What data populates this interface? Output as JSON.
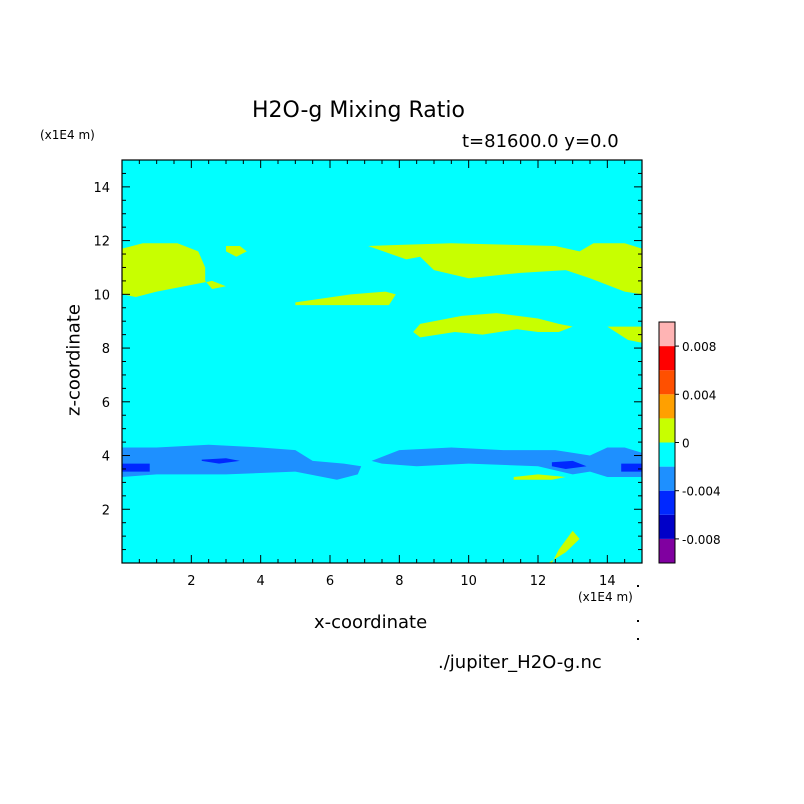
{
  "chart_data": {
    "type": "heatmap",
    "title": "H2O-g Mixing Ratio",
    "subtitle": "t=81600.0 y=0.0",
    "xlabel": "x-coordinate",
    "ylabel": "z-coordinate",
    "x_unit": "(x1E4 m)",
    "y_unit": "(x1E4 m)",
    "xlim": [
      0,
      15
    ],
    "ylim": [
      0,
      15
    ],
    "xticks": [
      "2",
      "4",
      "6",
      "8",
      "10",
      "12",
      "14"
    ],
    "yticks": [
      "2",
      "4",
      "6",
      "8",
      "10",
      "12",
      "14"
    ],
    "colorbar": {
      "levels": [
        -0.01,
        -0.008,
        -0.006,
        -0.004,
        -0.002,
        0,
        0.002,
        0.004,
        0.006,
        0.008,
        0.01
      ],
      "colors": [
        "#8000a0",
        "#0000c8",
        "#0028ff",
        "#1e90ff",
        "#00ffff",
        "#c8ff00",
        "#ffa000",
        "#ff5000",
        "#ff0000",
        "#ffb4b4"
      ],
      "tick_labels": [
        "-0.008",
        "-0.004",
        "0",
        "0.004",
        "0.008"
      ],
      "tick_values": [
        -0.008,
        -0.004,
        0,
        0.004,
        0.008
      ]
    },
    "background_value": -0.001,
    "regions": [
      {
        "name": "upper-moist-left",
        "level": 0.001,
        "x": [
          0,
          0.6,
          1.6,
          2.2,
          2.4,
          2.4,
          2.6,
          3.0,
          2.6,
          1.0,
          0.4,
          0
        ],
        "z": [
          11.7,
          11.9,
          11.9,
          11.6,
          11.0,
          10.5,
          10.2,
          10.3,
          10.5,
          10.1,
          9.9,
          10.0
        ]
      },
      {
        "name": "upper-moist-small",
        "level": 0.001,
        "x": [
          3.0,
          3.4,
          3.6,
          3.3,
          3.0
        ],
        "z": [
          11.8,
          11.8,
          11.6,
          11.4,
          11.6
        ]
      },
      {
        "name": "upper-moist-band",
        "level": 0.001,
        "x": [
          5.0,
          6.6,
          7.6,
          7.9,
          7.7,
          6.8,
          5.8,
          5.0
        ],
        "z": [
          9.7,
          10.0,
          10.1,
          10.0,
          9.6,
          9.6,
          9.6,
          9.6
        ]
      },
      {
        "name": "upper-moist-right",
        "level": 0.001,
        "x": [
          7.1,
          9.5,
          12.5,
          13.2,
          13.6,
          14.5,
          15.0,
          15.0,
          14.5,
          13.5,
          12.8,
          11.5,
          10.0,
          9.0,
          8.6,
          8.2,
          7.1
        ],
        "z": [
          11.8,
          11.9,
          11.8,
          11.6,
          11.9,
          11.9,
          11.7,
          10.0,
          10.1,
          10.6,
          10.9,
          10.8,
          10.6,
          10.9,
          11.4,
          11.3,
          11.8
        ]
      },
      {
        "name": "mid-moist",
        "level": 0.001,
        "x": [
          8.6,
          9.8,
          10.8,
          12.0,
          12.6,
          13.0,
          12.6,
          12.0,
          11.4,
          10.4,
          9.6,
          8.6,
          8.4
        ],
        "z": [
          8.9,
          9.2,
          9.3,
          9.1,
          8.9,
          8.8,
          8.6,
          8.6,
          8.7,
          8.5,
          8.6,
          8.4,
          8.6
        ]
      },
      {
        "name": "mid-moist-right",
        "level": 0.001,
        "x": [
          14.0,
          15.0,
          15.0,
          14.6
        ],
        "z": [
          8.8,
          8.8,
          8.2,
          8.3
        ]
      },
      {
        "name": "lower-dry-left",
        "level": -0.003,
        "x": [
          0,
          1.0,
          2.5,
          4.0,
          5.0,
          5.5,
          6.4,
          6.9,
          6.8,
          6.2,
          5.0,
          3.0,
          1.0,
          0
        ],
        "z": [
          4.3,
          4.3,
          4.4,
          4.3,
          4.2,
          3.8,
          3.7,
          3.6,
          3.3,
          3.1,
          3.4,
          3.3,
          3.3,
          3.2
        ]
      },
      {
        "name": "lower-dry-right",
        "level": -0.003,
        "x": [
          7.2,
          8.0,
          9.5,
          11.0,
          12.5,
          13.5,
          14.0,
          14.5,
          15.0,
          15.0,
          14.0,
          13.5,
          13.0,
          12.0,
          10.0,
          8.5,
          7.5,
          7.2
        ],
        "z": [
          3.8,
          4.2,
          4.3,
          4.2,
          4.2,
          4.0,
          4.3,
          4.3,
          4.1,
          3.2,
          3.2,
          3.4,
          3.3,
          3.6,
          3.7,
          3.6,
          3.7,
          3.8
        ]
      },
      {
        "name": "lower-dry-core-a",
        "level": -0.005,
        "x": [
          0,
          0.8,
          0.8,
          0
        ],
        "z": [
          3.7,
          3.7,
          3.4,
          3.4
        ]
      },
      {
        "name": "lower-dry-core-b",
        "level": -0.005,
        "x": [
          2.3,
          3.0,
          3.4,
          2.8,
          2.3
        ],
        "z": [
          3.85,
          3.9,
          3.8,
          3.7,
          3.8
        ]
      },
      {
        "name": "lower-dry-core-c",
        "level": -0.005,
        "x": [
          12.4,
          13.0,
          13.4,
          12.8,
          12.4
        ],
        "z": [
          3.75,
          3.8,
          3.6,
          3.5,
          3.6
        ]
      },
      {
        "name": "lower-dry-core-d",
        "level": -0.005,
        "x": [
          14.4,
          15.0,
          15.0,
          14.4
        ],
        "z": [
          3.7,
          3.7,
          3.4,
          3.4
        ]
      },
      {
        "name": "lower-moist-sliver",
        "level": 0.001,
        "x": [
          11.3,
          12.0,
          12.8,
          12.4,
          11.3
        ],
        "z": [
          3.2,
          3.3,
          3.2,
          3.1,
          3.1
        ]
      },
      {
        "name": "bottom-moist",
        "level": 0.001,
        "x": [
          12.4,
          12.6,
          13.0,
          13.2,
          12.8,
          12.3
        ],
        "z": [
          0.0,
          0.5,
          1.2,
          0.9,
          0.4,
          0.0
        ]
      }
    ]
  },
  "source_label": "./jupiter_H2O-g.nc"
}
